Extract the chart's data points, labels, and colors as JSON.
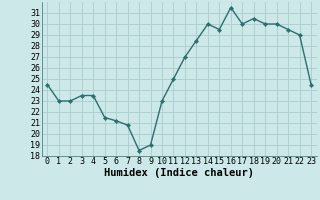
{
  "x": [
    0,
    1,
    2,
    3,
    4,
    5,
    6,
    7,
    8,
    9,
    10,
    11,
    12,
    13,
    14,
    15,
    16,
    17,
    18,
    19,
    20,
    21,
    22,
    23
  ],
  "y": [
    24.5,
    23.0,
    23.0,
    23.5,
    23.5,
    21.5,
    21.2,
    20.8,
    18.5,
    19.0,
    23.0,
    25.0,
    27.0,
    28.5,
    30.0,
    29.5,
    31.5,
    30.0,
    30.5,
    30.0,
    30.0,
    29.5,
    29.0,
    24.5
  ],
  "line_color": "#2d6e6e",
  "marker": "D",
  "marker_size": 2.2,
  "bg_color": "#cce8e8",
  "grid_color": "#aacccc",
  "xlabel": "Humidex (Indice chaleur)",
  "ylim": [
    18,
    32
  ],
  "xlim": [
    -0.5,
    23.5
  ],
  "yticks": [
    18,
    19,
    20,
    21,
    22,
    23,
    24,
    25,
    26,
    27,
    28,
    29,
    30,
    31
  ],
  "xticks": [
    0,
    1,
    2,
    3,
    4,
    5,
    6,
    7,
    8,
    9,
    10,
    11,
    12,
    13,
    14,
    15,
    16,
    17,
    18,
    19,
    20,
    21,
    22,
    23
  ],
  "xlabel_fontsize": 7.5,
  "tick_fontsize": 6.0,
  "line_width": 1.0
}
